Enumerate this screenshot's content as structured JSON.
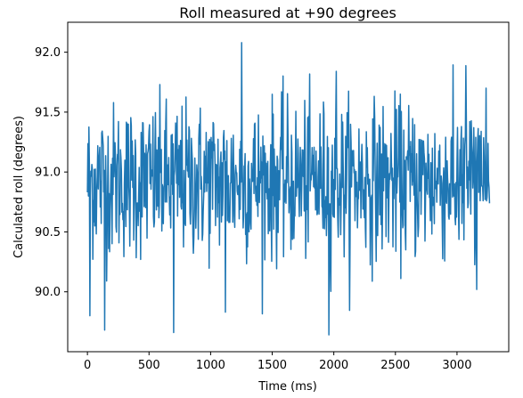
{
  "chart_data": {
    "type": "line",
    "title": "Roll measured at +90 degrees",
    "xlabel": "Time (ms)",
    "ylabel": "Calculated roll (degrees)",
    "xlim": [
      -160,
      3420
    ],
    "ylim": [
      89.5,
      92.25
    ],
    "xticks": [
      0,
      500,
      1000,
      1500,
      2000,
      2500,
      3000
    ],
    "xtick_labels": [
      "0",
      "500",
      "1000",
      "1500",
      "2000",
      "2500",
      "3000"
    ],
    "yticks": [
      90.0,
      90.5,
      91.0,
      91.5,
      92.0
    ],
    "ytick_labels": [
      "90.0",
      "90.5",
      "91.0",
      "91.5",
      "92.0"
    ],
    "grid": false,
    "series": [
      {
        "color": "#1f77b4",
        "sample_interval_ms": 4,
        "x_start": 0,
        "x_end": 3264,
        "y_mean": 90.93,
        "y_std": 0.32,
        "y_min": 89.64,
        "y_max": 92.08,
        "notable_points": [
          {
            "x": 18,
            "y": 89.8
          },
          {
            "x": 140,
            "y": 89.68
          },
          {
            "x": 700,
            "y": 89.66
          },
          {
            "x": 1120,
            "y": 89.83
          },
          {
            "x": 1250,
            "y": 92.08
          },
          {
            "x": 1960,
            "y": 89.64
          },
          {
            "x": 2020,
            "y": 91.84
          },
          {
            "x": 3235,
            "y": 91.7
          }
        ]
      }
    ]
  }
}
